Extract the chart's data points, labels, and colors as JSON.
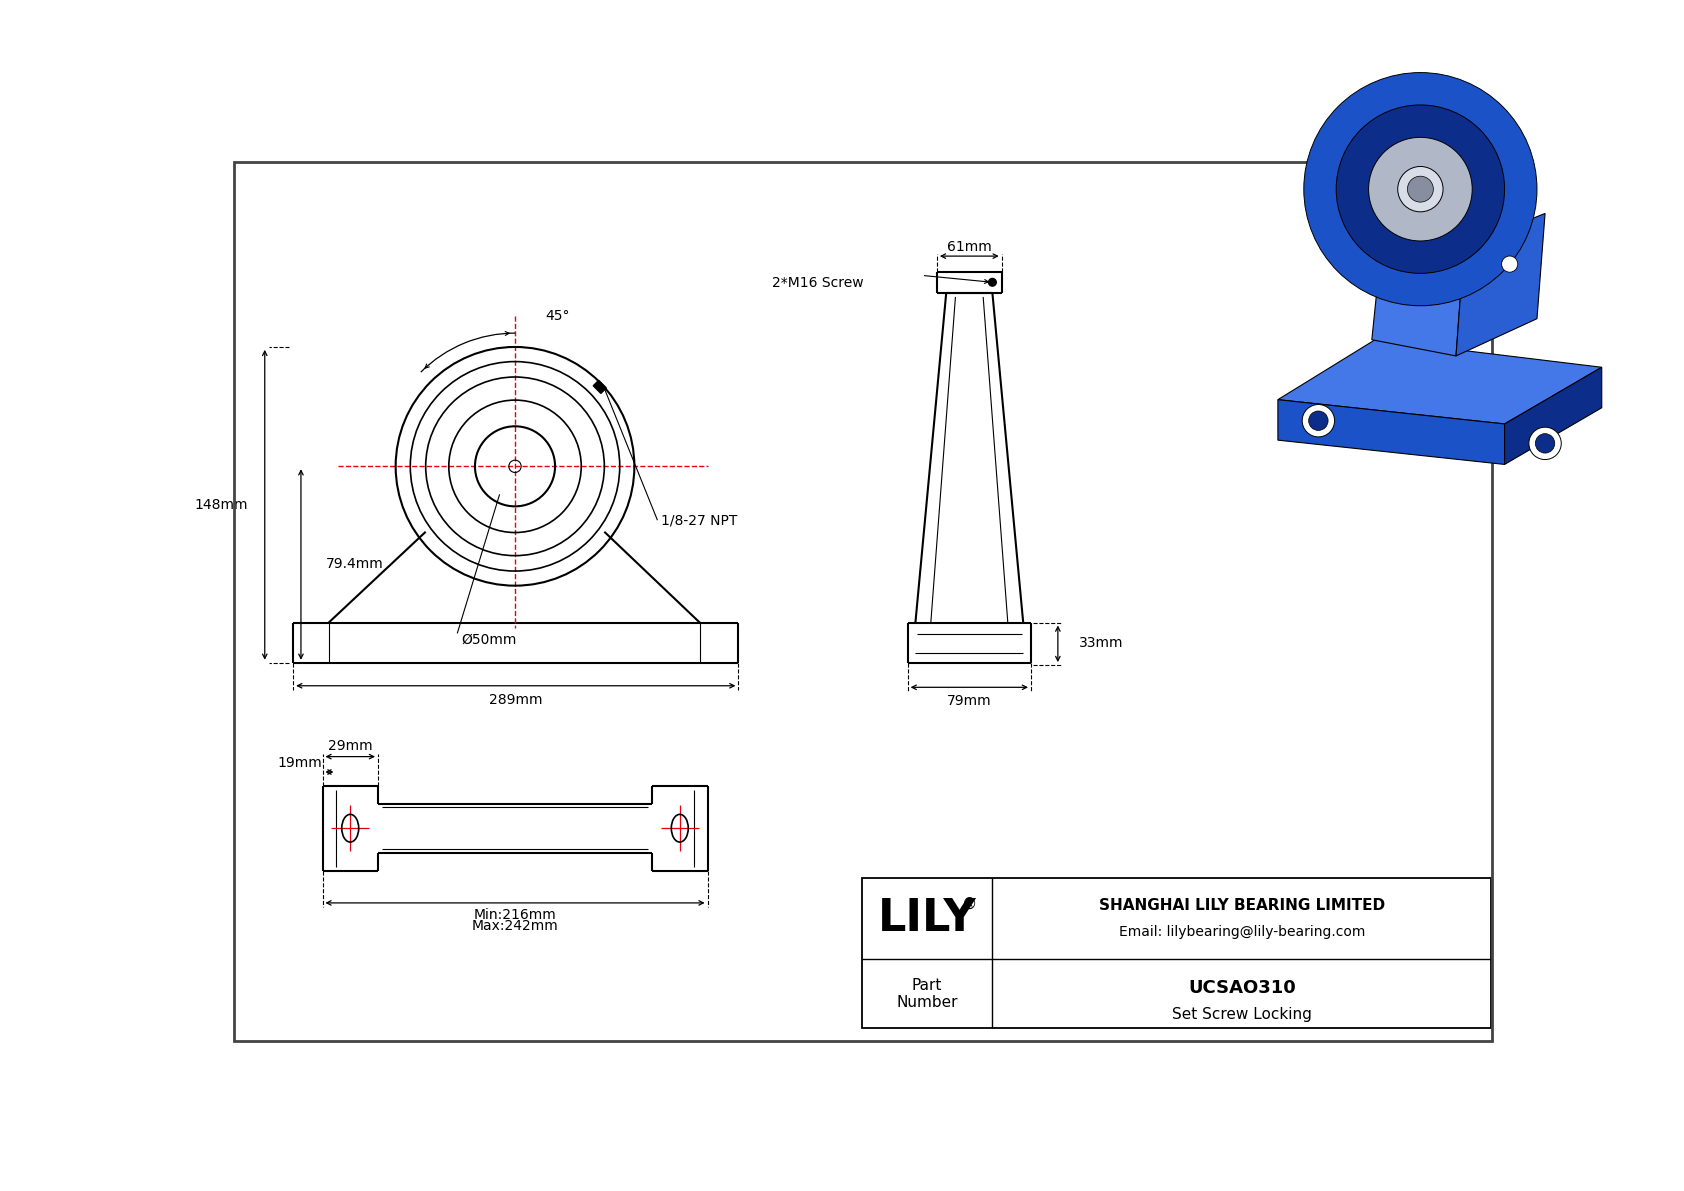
{
  "bg_color": "#ffffff",
  "line_color": "#000000",
  "red_color": "#e8000d",
  "dim_color": "#000000",
  "title_company": "SHANGHAI LILY BEARING LIMITED",
  "title_email": "Email: lilybearing@lily-bearing.com",
  "part_label": "Part\nNumber",
  "part_number": "UCSAO310",
  "part_type": "Set Screw Locking",
  "brand": "LILY",
  "dim_148": "148mm",
  "dim_79_4": "79.4mm",
  "dim_289": "289mm",
  "dim_50": "Ø50mm",
  "dim_45": "45°",
  "dim_npt": "1/8-27 NPT",
  "dim_61": "61mm",
  "dim_33": "33mm",
  "dim_79": "79mm",
  "dim_m16": "2*M16 Screw",
  "dim_29": "29mm",
  "dim_19": "19mm",
  "dim_min": "Min:216mm",
  "dim_max": "Max:242mm",
  "blue_main": "#1b52c8",
  "blue_light": "#4477e8",
  "blue_dark": "#0d2d8a",
  "blue_mid": "#2a5fd4",
  "metal_gray": "#b0b8c8",
  "metal_light": "#d8dde8",
  "metal_dark": "#888ea0"
}
